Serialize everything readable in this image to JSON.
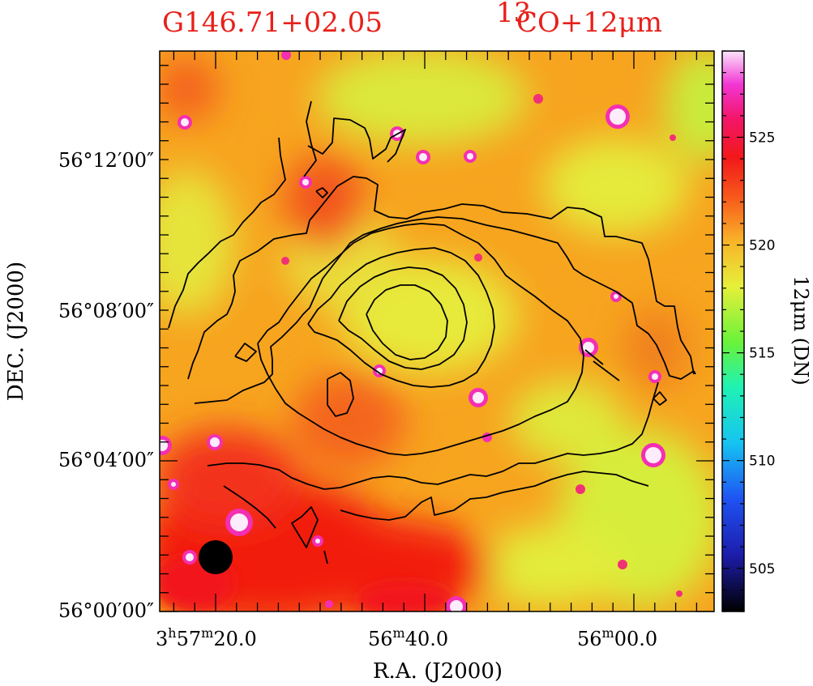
{
  "header": {
    "source_name": "G146.71+02.05",
    "tracer": "CO+12μm",
    "tracer_isotope": "13"
  },
  "chart_data": {
    "type": "heatmap",
    "xlabel": "R.A. (J2000)",
    "ylabel": "DEC. (J2000)",
    "x_ticks": [
      {
        "h": "3",
        "m": "57",
        "s": "20.0",
        "show_h": true,
        "show_m": true
      },
      {
        "m": "56",
        "s": "40.0",
        "show_h": false,
        "show_m": true
      },
      {
        "m": "56",
        "s": "00.0",
        "show_h": false,
        "show_m": true
      }
    ],
    "y_ticks": [
      "56°00′00″",
      "56°04′00″",
      "56°08′00″",
      "56°12′00″"
    ],
    "colorbar": {
      "label": "12μm (DN)",
      "ticks": [
        505,
        510,
        515,
        520,
        525
      ],
      "range": [
        503,
        529
      ]
    },
    "colors": {
      "title": "#e8201a",
      "background_dominant": "#f7a41f",
      "emission_low": "#f21d10",
      "emission_high": "#d8ee3b"
    },
    "beam": "filled-black-circle",
    "contour_count": 6
  }
}
